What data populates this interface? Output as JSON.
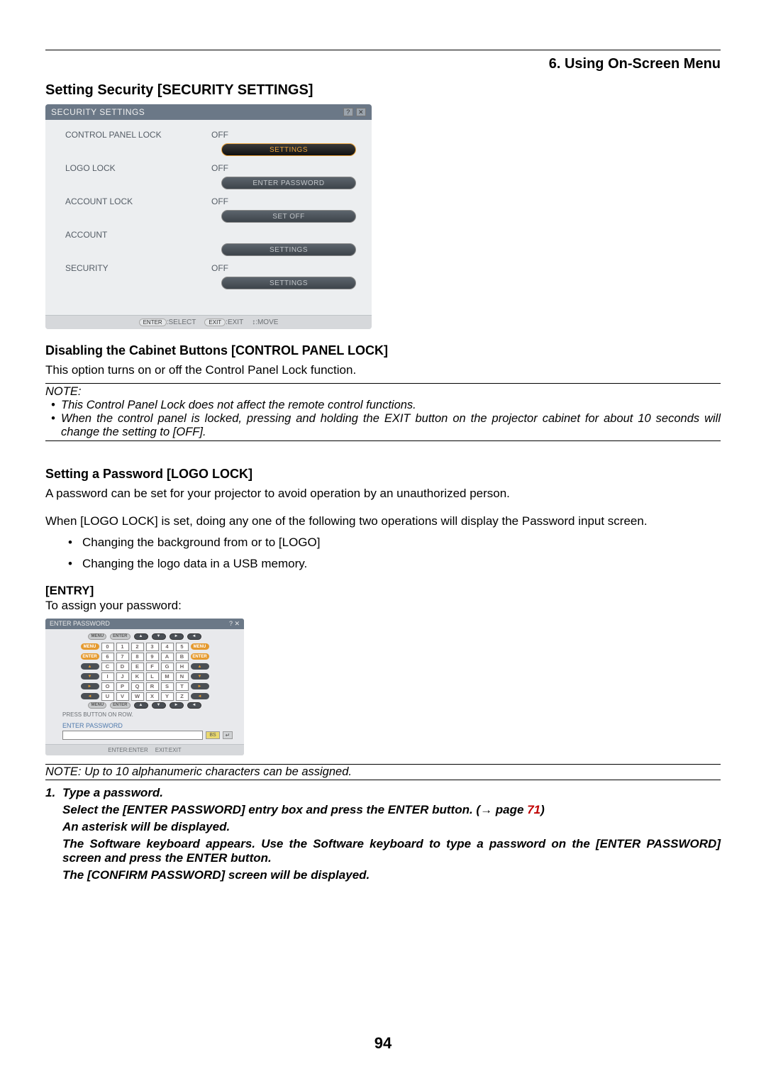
{
  "chapter_title": "6. Using On-Screen Menu",
  "section_title": "Setting Security [SECURITY SETTINGS]",
  "security_panel": {
    "title": "SECURITY SETTINGS",
    "rows": [
      {
        "label": "CONTROL PANEL LOCK",
        "value": "OFF",
        "button": "SETTINGS",
        "style": "orange"
      },
      {
        "label": "LOGO LOCK",
        "value": "OFF",
        "button": "ENTER PASSWORD",
        "style": "gray"
      },
      {
        "label": "ACCOUNT LOCK",
        "value": "OFF",
        "button": "SET OFF",
        "style": "gray"
      },
      {
        "label": "ACCOUNT",
        "value": "",
        "button": "SETTINGS",
        "style": "gray"
      },
      {
        "label": "SECURITY",
        "value": "OFF",
        "button": "SETTINGS",
        "style": "gray"
      }
    ],
    "footer": {
      "enter": "ENTER",
      "select": ":SELECT",
      "exit": "EXIT",
      "exit_t": ":EXIT",
      "move": "↕:MOVE"
    }
  },
  "subsection1_title": "Disabling the Cabinet Buttons [CONTROL PANEL LOCK]",
  "subsection1_text": "This option turns on or off the Control Panel Lock function.",
  "note1": {
    "label": "NOTE:",
    "items": [
      "This Control Panel Lock does not affect the remote control functions.",
      "When the control panel is locked, pressing and holding the EXIT button on the projector cabinet for about 10 seconds will change the setting to [OFF]."
    ]
  },
  "subsection2_title": "Setting a Password [LOGO LOCK]",
  "subsection2_text1": "A password can be set for your projector to avoid operation by an unauthorized person.",
  "subsection2_text2": "When [LOGO LOCK] is set, doing any one of the following two operations will display the Password input screen.",
  "subsection2_list": [
    "Changing the background from or to [LOGO]",
    "Changing the logo data in a USB memory."
  ],
  "entry_label": "[ENTRY]",
  "entry_text": "To assign your password:",
  "pw_panel": {
    "title": "ENTER PASSWORD",
    "top_pills": [
      "MENU",
      "ENTER",
      "▲",
      "▼",
      "►",
      "◄"
    ],
    "kb_rows": [
      {
        "left_pill": "MENU",
        "left_style": "menu",
        "keys": [
          "0",
          "1",
          "2",
          "3",
          "4",
          "5"
        ],
        "right_pill": "MENU",
        "right_style": "menu"
      },
      {
        "left_pill": "ENTER",
        "left_style": "menu",
        "keys": [
          "6",
          "7",
          "8",
          "9",
          "A",
          "B"
        ],
        "right_pill": "ENTER",
        "right_style": "menu"
      },
      {
        "left_pill": "▲",
        "left_style": "arrow",
        "keys": [
          "C",
          "D",
          "E",
          "F",
          "G",
          "H"
        ],
        "right_pill": "▲",
        "right_style": "arrow"
      },
      {
        "left_pill": "▼",
        "left_style": "arrow",
        "keys": [
          "I",
          "J",
          "K",
          "L",
          "M",
          "N"
        ],
        "right_pill": "▼",
        "right_style": "arrow"
      },
      {
        "left_pill": "►",
        "left_style": "arrow",
        "keys": [
          "O",
          "P",
          "Q",
          "R",
          "S",
          "T"
        ],
        "right_pill": "►",
        "right_style": "arrow"
      },
      {
        "left_pill": "◄",
        "left_style": "arrow",
        "keys": [
          "U",
          "V",
          "W",
          "X",
          "Y",
          "Z"
        ],
        "right_pill": "◄",
        "right_style": "arrow"
      }
    ],
    "bottom_pills": [
      "MENU",
      "ENTER",
      "▲",
      "▼",
      "►",
      "◄"
    ],
    "press_text": "PRESS BUTTON ON ROW.",
    "entry_label": "ENTER PASSWORD",
    "bs": "BS",
    "footer": {
      "enter": "ENTER",
      "enter_t": ":ENTER",
      "exit": "EXIT",
      "exit_t": ":EXIT"
    }
  },
  "note2": "NOTE: Up to 10 alphanumeric characters can be assigned.",
  "steps": {
    "head": "Type a password.",
    "lines": [
      "Select the [ENTER PASSWORD] entry box and press the ENTER button. (→ page ",
      "An asterisk will be displayed.",
      "The Software keyboard appears. Use the Software keyboard to type a password on the [ENTER PASSWORD] screen and press the ENTER button.",
      "The [CONFIRM PASSWORD] screen will be displayed."
    ],
    "page_link": "71",
    "paren_close": ")"
  },
  "page_number": "94",
  "colors": {
    "link": "#c00000",
    "panel_header": "#6b7887",
    "orange": "#e59a2f"
  }
}
